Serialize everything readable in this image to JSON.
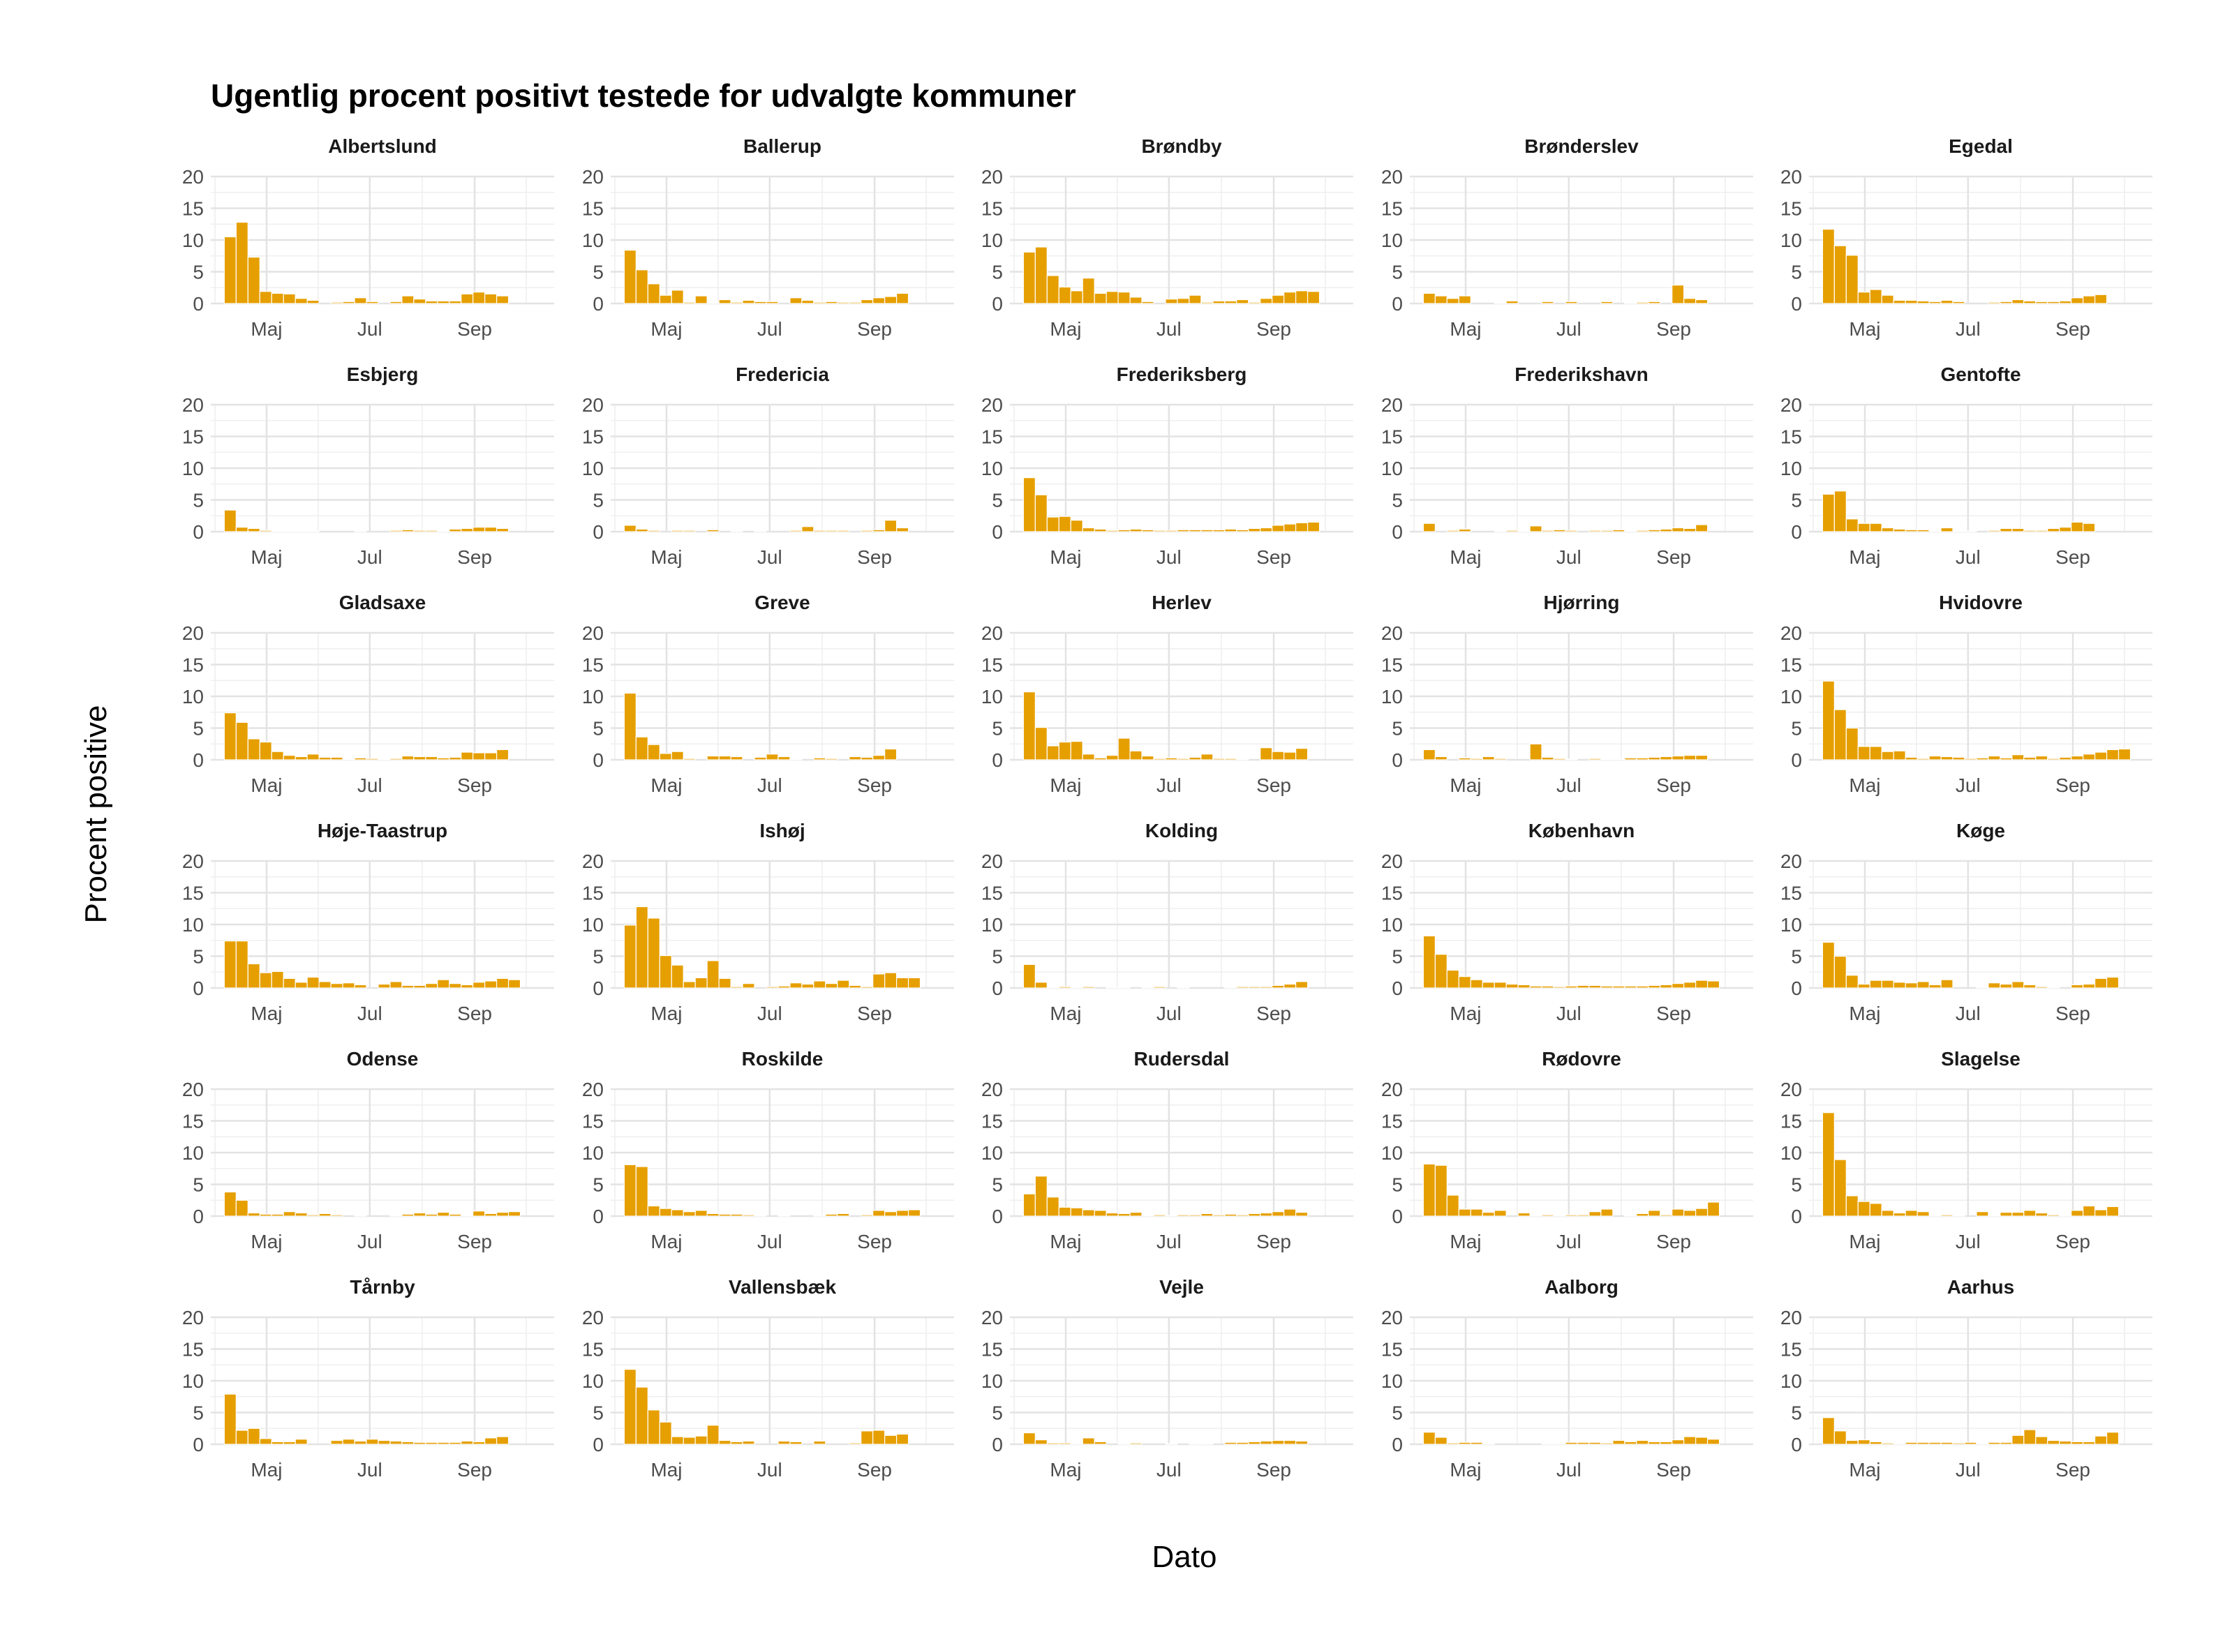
{
  "chart_data": {
    "type": "bar",
    "title": "Ugentlig procent positivt testede for udvalgte kommuner",
    "xlabel": "Dato",
    "ylabel": "Procent positive",
    "ylim": [
      0,
      20
    ],
    "yticks": [
      0,
      5,
      10,
      15,
      20
    ],
    "xlim": [
      "2020-03-29",
      "2020-10-18"
    ],
    "xticks": [
      {
        "date": "2020-05-01",
        "label": "Maj"
      },
      {
        "date": "2020-07-01",
        "label": "Jul"
      },
      {
        "date": "2020-09-01",
        "label": "Sep"
      }
    ],
    "grid": true,
    "legend": "none",
    "bar_color": "#E69F00",
    "week_starts": [
      "2020-04-06",
      "2020-04-13",
      "2020-04-20",
      "2020-04-27",
      "2020-05-04",
      "2020-05-11",
      "2020-05-18",
      "2020-05-25",
      "2020-06-01",
      "2020-06-08",
      "2020-06-15",
      "2020-06-22",
      "2020-06-29",
      "2020-07-06",
      "2020-07-13",
      "2020-07-20",
      "2020-07-27",
      "2020-08-03",
      "2020-08-10",
      "2020-08-17",
      "2020-08-24",
      "2020-08-31",
      "2020-09-07",
      "2020-09-14",
      "2020-09-21",
      "2020-09-28",
      "2020-10-05"
    ],
    "panels": [
      {
        "name": "Albertslund",
        "values": [
          10.5,
          12.8,
          7.3,
          1.9,
          1.6,
          1.5,
          0.8,
          0.5,
          0,
          0.2,
          0.3,
          0.9,
          0.3,
          0,
          0.3,
          1.2,
          0.7,
          0.4,
          0.4,
          0.4,
          1.5,
          1.8,
          1.5,
          1.2,
          0,
          0,
          0
        ]
      },
      {
        "name": "Ballerup",
        "values": [
          8.4,
          5.3,
          3.1,
          1.3,
          2.1,
          0.2,
          1.2,
          0.1,
          0.6,
          0.2,
          0.5,
          0.3,
          0.3,
          0,
          0.9,
          0.5,
          0.2,
          0.3,
          0.2,
          0.2,
          0.6,
          0.9,
          1.1,
          1.6,
          0,
          0,
          0
        ]
      },
      {
        "name": "Brøndby",
        "values": [
          8.1,
          8.9,
          4.4,
          2.6,
          2,
          4,
          1.6,
          1.9,
          1.8,
          1,
          0.3,
          0,
          0.7,
          0.8,
          1.3,
          0.2,
          0.4,
          0.4,
          0.6,
          0.2,
          0.8,
          1.3,
          1.8,
          2,
          1.9,
          0,
          0
        ]
      },
      {
        "name": "Brønderslev",
        "values": [
          1.6,
          1.2,
          0.8,
          1.2,
          0,
          0,
          0.1,
          0.4,
          0,
          0,
          0.3,
          0,
          0.3,
          0,
          0,
          0.3,
          0,
          0.1,
          0.2,
          0.3,
          0,
          2.9,
          0.8,
          0.6,
          0,
          0,
          0
        ]
      },
      {
        "name": "Egedal",
        "values": [
          11.7,
          9.1,
          7.6,
          1.8,
          2.2,
          1.3,
          0.5,
          0.5,
          0.4,
          0.3,
          0.5,
          0.3,
          0,
          0,
          0.2,
          0.3,
          0.6,
          0.4,
          0.3,
          0.3,
          0.4,
          0.9,
          1.2,
          1.4,
          0,
          0,
          0
        ]
      },
      {
        "name": "Esbjerg",
        "values": [
          3.4,
          0.7,
          0.5,
          0.2,
          0.1,
          0.1,
          0.1,
          0.1,
          0,
          0,
          0,
          0.1,
          0,
          0,
          0.2,
          0.3,
          0.2,
          0.2,
          0.1,
          0.4,
          0.5,
          0.7,
          0.7,
          0.5,
          0,
          0,
          0
        ]
      },
      {
        "name": "Fredericia",
        "values": [
          1,
          0.4,
          0.2,
          0,
          0.2,
          0.2,
          0,
          0.3,
          0,
          0.1,
          0,
          0.1,
          0,
          0,
          0.2,
          0.8,
          0.2,
          0.2,
          0.2,
          0,
          0.2,
          0.3,
          1.8,
          0.6,
          0,
          0,
          0
        ]
      },
      {
        "name": "Frederiksberg",
        "values": [
          8.5,
          5.8,
          2.3,
          2.4,
          1.8,
          0.6,
          0.4,
          0.2,
          0.3,
          0.4,
          0.3,
          0.2,
          0.2,
          0.3,
          0.3,
          0.3,
          0.3,
          0.4,
          0.3,
          0.5,
          0.6,
          1,
          1.2,
          1.4,
          1.5,
          0,
          0
        ]
      },
      {
        "name": "Frederikshavn",
        "values": [
          1.3,
          0,
          0.2,
          0.4,
          0,
          0,
          0.1,
          0.2,
          0.1,
          0.9,
          0.2,
          0.3,
          0.2,
          0,
          0.2,
          0.2,
          0.3,
          0.1,
          0.2,
          0.3,
          0.4,
          0.6,
          0.5,
          1.1,
          0,
          0,
          0
        ]
      },
      {
        "name": "Gentofte",
        "values": [
          5.9,
          6.4,
          2,
          1.3,
          1.3,
          0.6,
          0.4,
          0.3,
          0.3,
          0.1,
          0.6,
          0.1,
          0.1,
          0,
          0.2,
          0.5,
          0.5,
          0.2,
          0.2,
          0.5,
          0.7,
          1.5,
          1.3,
          0,
          0,
          0,
          0
        ]
      },
      {
        "name": "Gladsaxe",
        "values": [
          7.4,
          5.9,
          3.3,
          2.8,
          1.3,
          0.7,
          0.5,
          0.9,
          0.4,
          0.4,
          0.1,
          0.3,
          0.2,
          0.1,
          0.2,
          0.6,
          0.5,
          0.5,
          0.3,
          0.4,
          1.2,
          1.1,
          1.1,
          1.6,
          0,
          0,
          0
        ]
      },
      {
        "name": "Greve",
        "values": [
          10.5,
          3.6,
          2.4,
          1,
          1.3,
          0.2,
          0,
          0.6,
          0.6,
          0.5,
          0,
          0.4,
          0.9,
          0.5,
          0.1,
          0,
          0.3,
          0.2,
          0,
          0.5,
          0.4,
          0.7,
          1.7,
          0,
          0,
          0,
          0
        ]
      },
      {
        "name": "Herlev",
        "values": [
          10.7,
          5.1,
          2.2,
          2.8,
          2.9,
          0.9,
          0.3,
          0.7,
          3.4,
          1.4,
          0.6,
          0.2,
          0.3,
          0.2,
          0.4,
          0.9,
          0.2,
          0.2,
          0.1,
          0,
          1.9,
          1.3,
          1.2,
          1.8,
          0,
          0,
          0
        ]
      },
      {
        "name": "Hjørring",
        "values": [
          1.6,
          0.5,
          0,
          0.3,
          0.2,
          0.5,
          0.2,
          0,
          0,
          2.5,
          0.4,
          0.2,
          0.1,
          0,
          0.2,
          0.1,
          0.1,
          0.3,
          0.3,
          0.4,
          0.5,
          0.6,
          0.7,
          0.7,
          0,
          0,
          0
        ]
      },
      {
        "name": "Hvidovre",
        "values": [
          12.4,
          7.9,
          5,
          2.1,
          2.1,
          1.3,
          1.4,
          0.4,
          0.2,
          0.6,
          0.5,
          0.4,
          0.2,
          0.3,
          0.6,
          0.3,
          0.8,
          0.4,
          0.6,
          0.2,
          0.4,
          0.6,
          0.9,
          1.2,
          1.6,
          1.7,
          0
        ]
      },
      {
        "name": "Høje-Taastrup",
        "values": [
          7.4,
          7.4,
          3.8,
          2.4,
          2.6,
          1.5,
          0.9,
          1.7,
          1,
          0.7,
          0.8,
          0.5,
          0,
          0.6,
          1,
          0.4,
          0.4,
          0.7,
          1.3,
          0.7,
          0.5,
          0.9,
          1.1,
          1.5,
          1.3,
          0,
          0
        ]
      },
      {
        "name": "Ishøj",
        "values": [
          9.9,
          12.8,
          11,
          5.1,
          3.6,
          1,
          1.6,
          4.3,
          1.5,
          0.2,
          0.7,
          0,
          0.2,
          0.3,
          0.8,
          0.6,
          1.1,
          0.7,
          1.2,
          0.4,
          0.2,
          2.2,
          2.4,
          1.6,
          1.6,
          0,
          0
        ]
      },
      {
        "name": "Kolding",
        "values": [
          3.7,
          0.9,
          0.1,
          0.2,
          0.1,
          0.2,
          0,
          0.1,
          0.1,
          0,
          0.1,
          0.2,
          0,
          0.1,
          0,
          0,
          0,
          0.1,
          0.2,
          0.2,
          0.2,
          0.4,
          0.6,
          1,
          0,
          0,
          0
        ]
      },
      {
        "name": "København",
        "values": [
          8.2,
          5.3,
          2.8,
          1.8,
          1.3,
          0.9,
          0.9,
          0.6,
          0.5,
          0.3,
          0.3,
          0.2,
          0.3,
          0.4,
          0.4,
          0.3,
          0.3,
          0.3,
          0.3,
          0.4,
          0.5,
          0.7,
          0.9,
          1.2,
          1.1,
          0,
          0
        ]
      },
      {
        "name": "Køge",
        "values": [
          7.2,
          5,
          2,
          0.6,
          1.2,
          1.2,
          0.9,
          0.8,
          1,
          0.5,
          1.3,
          0,
          0,
          0.1,
          0.8,
          0.6,
          1,
          0.5,
          0.2,
          0.1,
          0,
          0.5,
          0.6,
          1.5,
          1.7,
          0,
          0
        ]
      },
      {
        "name": "Odense",
        "values": [
          3.8,
          2.5,
          0.5,
          0.3,
          0.3,
          0.7,
          0.5,
          0.2,
          0.4,
          0.2,
          0,
          0.1,
          0,
          0,
          0.1,
          0.3,
          0.5,
          0.3,
          0.6,
          0.3,
          0.1,
          0.8,
          0.4,
          0.6,
          0.7,
          0,
          0
        ]
      },
      {
        "name": "Roskilde",
        "values": [
          8.1,
          7.8,
          1.6,
          1.2,
          1,
          0.7,
          0.9,
          0.4,
          0.3,
          0.3,
          0.2,
          0.1,
          0,
          0.1,
          0,
          0,
          0.1,
          0.3,
          0.4,
          0,
          0.2,
          0.9,
          0.7,
          0.9,
          1,
          0,
          0
        ]
      },
      {
        "name": "Rudersdal",
        "values": [
          3.5,
          6.3,
          3,
          1.4,
          1.3,
          1,
          0.9,
          0.5,
          0.4,
          0.6,
          0.1,
          0.2,
          0.1,
          0.2,
          0.2,
          0.4,
          0.2,
          0.3,
          0.2,
          0.4,
          0.5,
          0.7,
          1.1,
          0.6,
          0,
          0,
          0
        ]
      },
      {
        "name": "Rødovre",
        "values": [
          8.2,
          8,
          3.3,
          1.1,
          1.1,
          0.6,
          0.9,
          0,
          0.5,
          0.1,
          0.2,
          0.1,
          0.2,
          0.2,
          0.7,
          1.1,
          0,
          0.1,
          0.4,
          0.9,
          0.2,
          1.1,
          0.9,
          1.2,
          2.2,
          0,
          0
        ]
      },
      {
        "name": "Slagelse",
        "values": [
          16.3,
          8.9,
          3.2,
          2.3,
          2,
          0.9,
          0.5,
          0.9,
          0.7,
          0.1,
          0.2,
          0.1,
          0,
          0.7,
          0.1,
          0.6,
          0.6,
          0.9,
          0.5,
          0.2,
          0.1,
          0.9,
          1.6,
          1,
          1.5,
          0,
          0
        ]
      },
      {
        "name": "Tårnby",
        "values": [
          7.9,
          2.2,
          2.5,
          0.9,
          0.4,
          0.4,
          0.8,
          0,
          0,
          0.6,
          0.8,
          0.5,
          0.8,
          0.6,
          0.5,
          0.4,
          0.3,
          0.3,
          0.3,
          0.3,
          0.5,
          0.4,
          1,
          1.2,
          0,
          0,
          0
        ]
      },
      {
        "name": "Vallensbæk",
        "values": [
          11.8,
          9,
          5.4,
          3.5,
          1.2,
          1.1,
          1.3,
          3,
          0.6,
          0.4,
          0.5,
          0,
          0,
          0.5,
          0.4,
          0,
          0.5,
          0,
          0,
          0.2,
          2.1,
          2.2,
          1.4,
          1.6,
          0,
          0,
          0
        ]
      },
      {
        "name": "Vejle",
        "values": [
          1.8,
          0.7,
          0.2,
          0.2,
          0.1,
          1,
          0.4,
          0,
          0.1,
          0.2,
          0,
          0,
          0.1,
          0,
          0.1,
          0.1,
          0,
          0.3,
          0.3,
          0.4,
          0.5,
          0.6,
          0.6,
          0.5,
          0,
          0,
          0
        ]
      },
      {
        "name": "Aalborg",
        "values": [
          1.9,
          1.1,
          0.2,
          0.3,
          0.3,
          0.1,
          0,
          0,
          0,
          0,
          0.1,
          0.1,
          0.3,
          0.3,
          0.3,
          0.2,
          0.6,
          0.4,
          0.6,
          0.4,
          0.4,
          0.7,
          1.2,
          1.1,
          0.8,
          0,
          0
        ]
      },
      {
        "name": "Aarhus",
        "values": [
          4.2,
          2.1,
          0.6,
          0.7,
          0.4,
          0.2,
          0.1,
          0.3,
          0.3,
          0.3,
          0.3,
          0.2,
          0.3,
          0.1,
          0.3,
          0.3,
          1.4,
          2.3,
          1.2,
          0.6,
          0.5,
          0.4,
          0.4,
          1.3,
          1.9,
          0,
          0
        ]
      }
    ]
  }
}
